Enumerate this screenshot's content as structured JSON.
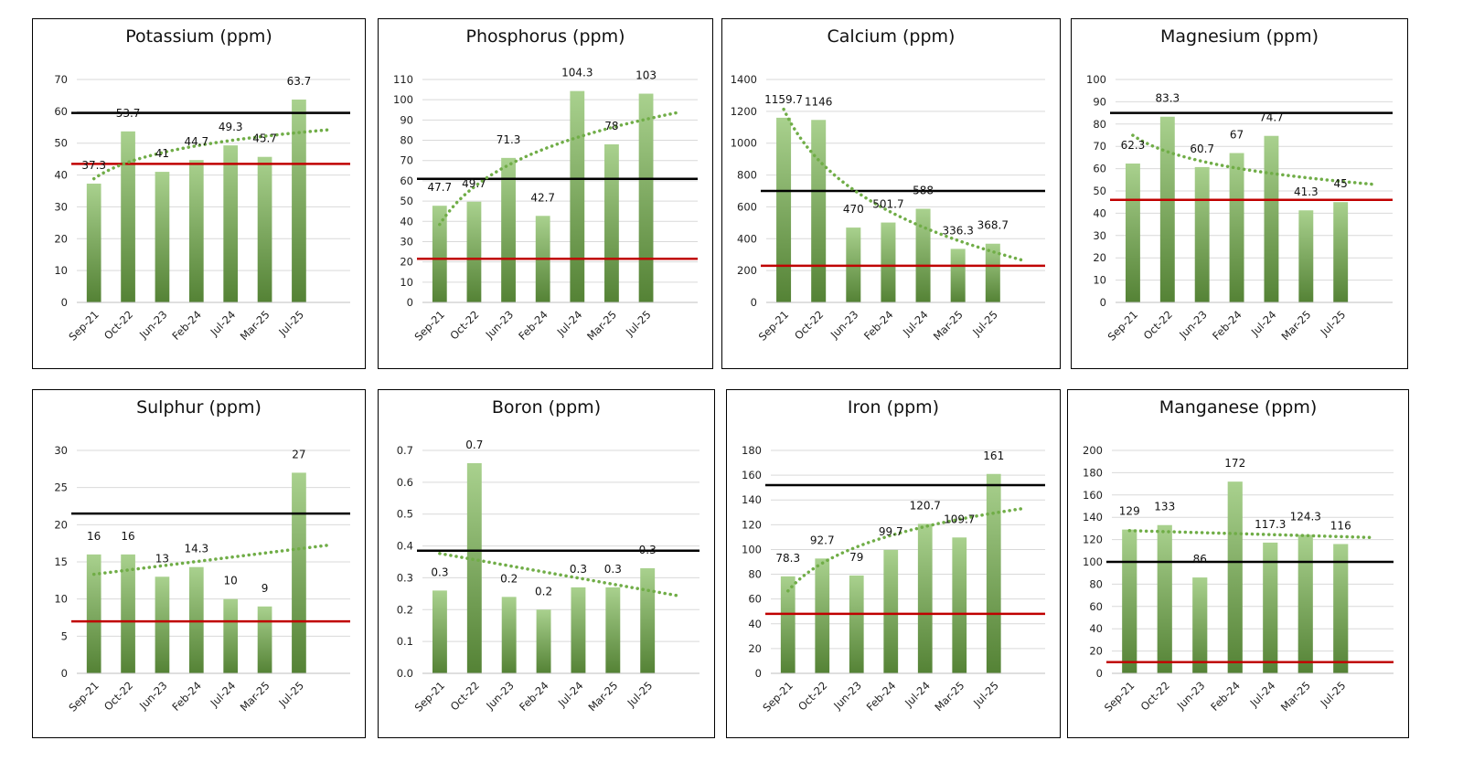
{
  "colors": {
    "bar_top": "#a9d18e",
    "bar_bottom": "#548235",
    "upper_line": "#000000",
    "lower_line": "#c00000",
    "trend": "#70ad47",
    "grid": "#d9d9d9"
  },
  "chart_data": [
    {
      "type": "bar",
      "title": "Potassium (ppm)",
      "categories": [
        "Sep-21",
        "Oct-22",
        "Jun-23",
        "Feb-24",
        "Jul-24",
        "Mar-25",
        "Jul-25"
      ],
      "values": [
        37.3,
        53.7,
        41,
        44.7,
        49.3,
        45.7,
        63.7
      ],
      "data_labels": [
        "37.3",
        "53.7",
        "41",
        "44.7",
        "49.3",
        "45.7",
        "63.7"
      ],
      "y_ticks": [
        "0",
        "10",
        "20",
        "30",
        "40",
        "50",
        "60",
        "70"
      ],
      "ylim": [
        0,
        70
      ],
      "upper_line": 59.5,
      "lower_line": 43.5,
      "trend": "increasing",
      "grid": true
    },
    {
      "type": "bar",
      "title": "Phosphorus (ppm)",
      "categories": [
        "Sep-21",
        "Oct-22",
        "Jun-23",
        "Feb-24",
        "Jul-24",
        "Mar-25",
        "Jul-25"
      ],
      "values": [
        47.7,
        49.7,
        71.3,
        42.7,
        104.3,
        78,
        103
      ],
      "data_labels": [
        "47.7",
        "49.7",
        "71.3",
        "42.7",
        "104.3",
        "78",
        "103"
      ],
      "y_ticks": [
        "0",
        "10",
        "20",
        "30",
        "40",
        "50",
        "60",
        "70",
        "80",
        "90",
        "100",
        "110"
      ],
      "ylim": [
        0,
        110
      ],
      "upper_line": 61,
      "lower_line": 21.5,
      "trend": "increasing",
      "grid": true
    },
    {
      "type": "bar",
      "title": "Calcium (ppm)",
      "categories": [
        "Sep-21",
        "Oct-22",
        "Jun-23",
        "Feb-24",
        "Jul-24",
        "Mar-25",
        "Jul-25"
      ],
      "values": [
        1159.7,
        1146,
        470,
        501.7,
        588,
        336.3,
        368.7
      ],
      "data_labels": [
        "1159.7",
        "1146",
        "470",
        "501.7",
        "588",
        "336.3",
        "368.7"
      ],
      "y_ticks": [
        "0",
        "200",
        "400",
        "600",
        "800",
        "1000",
        "1200",
        "1400"
      ],
      "ylim": [
        0,
        1400
      ],
      "upper_line": 700,
      "lower_line": 230,
      "trend": "decreasing",
      "grid": true
    },
    {
      "type": "bar",
      "title": "Magnesium (ppm)",
      "categories": [
        "Sep-21",
        "Oct-22",
        "Jun-23",
        "Feb-24",
        "Jul-24",
        "Mar-25",
        "Jul-25"
      ],
      "values": [
        62.3,
        83.3,
        60.7,
        67,
        74.7,
        41.3,
        45
      ],
      "data_labels": [
        "62.3",
        "83.3",
        "60.7",
        "67",
        "74.7",
        "41.3",
        "45"
      ],
      "y_ticks": [
        "0",
        "10",
        "20",
        "30",
        "40",
        "50",
        "60",
        "70",
        "80",
        "90",
        "100"
      ],
      "ylim": [
        0,
        100
      ],
      "upper_line": 85,
      "lower_line": 46,
      "trend": "decreasing",
      "grid": true
    },
    {
      "type": "bar",
      "title": "Sulphur (ppm)",
      "categories": [
        "Sep-21",
        "Oct-22",
        "Jun-23",
        "Feb-24",
        "Jul-24",
        "Mar-25",
        "Jul-25"
      ],
      "values": [
        16,
        16,
        13,
        14.3,
        10,
        9,
        27
      ],
      "data_labels": [
        "16",
        "16",
        "13",
        "14.3",
        "10",
        "9",
        "27"
      ],
      "y_ticks": [
        "0",
        "5",
        "10",
        "15",
        "20",
        "25",
        "30"
      ],
      "ylim": [
        0,
        30
      ],
      "upper_line": 21.5,
      "lower_line": 7,
      "trend": "flat",
      "grid": true
    },
    {
      "type": "bar",
      "title": "Boron (ppm)",
      "categories": [
        "Sep-21",
        "Oct-22",
        "Jun-23",
        "Feb-24",
        "Jul-24",
        "Mar-25",
        "Jul-25"
      ],
      "values": [
        0.26,
        0.66,
        0.24,
        0.2,
        0.27,
        0.27,
        0.33
      ],
      "data_labels": [
        "0.3",
        "0.7",
        "0.2",
        "0.2",
        "0.3",
        "0.3",
        "0.3"
      ],
      "y_ticks": [
        "0.0",
        "0.1",
        "0.2",
        "0.3",
        "0.4",
        "0.5",
        "0.6",
        "0.7"
      ],
      "ylim": [
        0,
        0.7
      ],
      "upper_line": 0.385,
      "lower_line": null,
      "trend": "flat",
      "grid": true
    },
    {
      "type": "bar",
      "title": "Iron (ppm)",
      "categories": [
        "Sep-21",
        "Oct-22",
        "Jun-23",
        "Feb-24",
        "Jul-24",
        "Mar-25",
        "Jul-25"
      ],
      "values": [
        78.3,
        92.7,
        79,
        99.7,
        120.7,
        109.7,
        161
      ],
      "data_labels": [
        "78.3",
        "92.7",
        "79",
        "99.7",
        "120.7",
        "109.7",
        "161"
      ],
      "y_ticks": [
        "0",
        "20",
        "40",
        "60",
        "80",
        "100",
        "120",
        "140",
        "160",
        "180"
      ],
      "ylim": [
        0,
        180
      ],
      "upper_line": 152,
      "lower_line": 48,
      "trend": "increasing",
      "grid": true
    },
    {
      "type": "bar",
      "title": "Manganese (ppm)",
      "categories": [
        "Sep-21",
        "Oct-22",
        "Jun-23",
        "Feb-24",
        "Jul-24",
        "Mar-25",
        "Jul-25"
      ],
      "values": [
        129,
        133,
        86,
        172,
        117.3,
        124.3,
        116
      ],
      "data_labels": [
        "129",
        "133",
        "86",
        "172",
        "117.3",
        "124.3",
        "116"
      ],
      "y_ticks": [
        "0",
        "20",
        "40",
        "60",
        "80",
        "100",
        "120",
        "140",
        "160",
        "180",
        "200"
      ],
      "ylim": [
        0,
        200
      ],
      "upper_line": 100,
      "lower_line": 10,
      "trend": "flat",
      "grid": true
    }
  ]
}
